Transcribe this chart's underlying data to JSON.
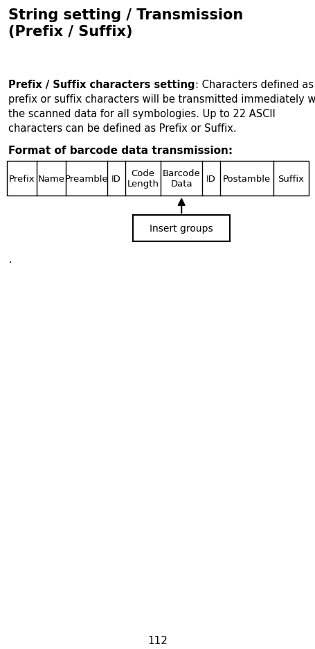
{
  "title_line1": "String setting / Transmission",
  "title_line2": "(Prefix / Suffix)",
  "body_bold_part": "Prefix / Suffix characters setting",
  "body_normal_part": ": Characters defined as prefix or suffix characters will be transmitted immediately with the scanned data for all symbologies. Up to 22 ASCII characters can be defined as Prefix or Suffix.",
  "format_label": "Format of barcode data transmission:",
  "table_headers": [
    "Prefix",
    "Name",
    "Preamble",
    "ID",
    "Code\nLength",
    "Barcode\nData",
    "ID",
    "Postamble",
    "Suffix"
  ],
  "col_widths_rel": [
    5,
    5,
    7,
    3,
    6,
    7,
    3,
    9,
    6
  ],
  "insert_box_label": "Insert groups",
  "page_number": "112",
  "bg_color": "#ffffff",
  "text_color": "#000000",
  "title_fontsize": 15,
  "body_fontsize": 10.5,
  "format_label_fontsize": 11,
  "table_fontsize": 9.5,
  "page_fontsize": 11
}
